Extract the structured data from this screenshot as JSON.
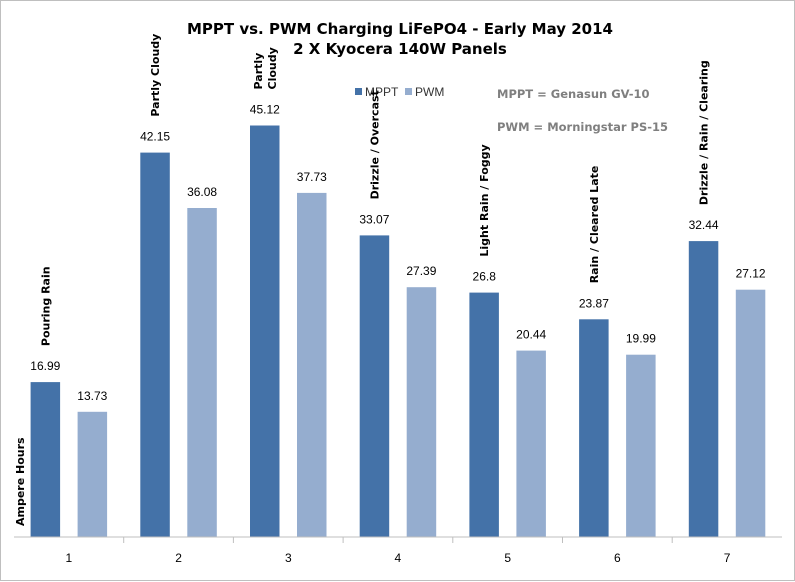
{
  "chart_data": {
    "type": "bar",
    "title": "MPPT vs. PWM Charging LiFePO4 - Early May 2014",
    "subtitle": "2 X Kyocera 140W Panels",
    "ylabel": "Ampere Hours",
    "xlabel": "",
    "ylim": [
      0,
      50
    ],
    "grid": false,
    "legend_position": "top",
    "categories": [
      "1",
      "2",
      "3",
      "4",
      "5",
      "6",
      "7"
    ],
    "series": [
      {
        "name": "MPPT",
        "color": "#4472a8",
        "values": [
          16.99,
          42.15,
          45.12,
          33.07,
          26.8,
          23.87,
          32.44
        ],
        "labels": [
          "16.99",
          "42.15",
          "45.12",
          "33.07",
          "26.8",
          "23.87",
          "32.44"
        ]
      },
      {
        "name": "PWM",
        "color": "#95adcf",
        "values": [
          13.73,
          36.08,
          37.73,
          27.39,
          20.44,
          19.99,
          27.12
        ],
        "labels": [
          "13.73",
          "36.08",
          "37.73",
          "27.39",
          "20.44",
          "19.99",
          "27.12"
        ]
      }
    ],
    "annotations": [
      {
        "lines": [
          "Pouring Rain"
        ]
      },
      {
        "lines": [
          "Partly Cloudy"
        ]
      },
      {
        "lines": [
          "Partly",
          "Cloudy"
        ]
      },
      {
        "lines": [
          "Drizzle / Overcast"
        ]
      },
      {
        "lines": [
          "Light Rain / Foggy"
        ]
      },
      {
        "lines": [
          "Rain / Cleared Late"
        ]
      },
      {
        "lines": [
          "Drizzle / Rain / Clearing"
        ]
      }
    ],
    "notes": [
      "MPPT = Genasun GV-10",
      "PWM = Morningstar PS-15"
    ]
  }
}
